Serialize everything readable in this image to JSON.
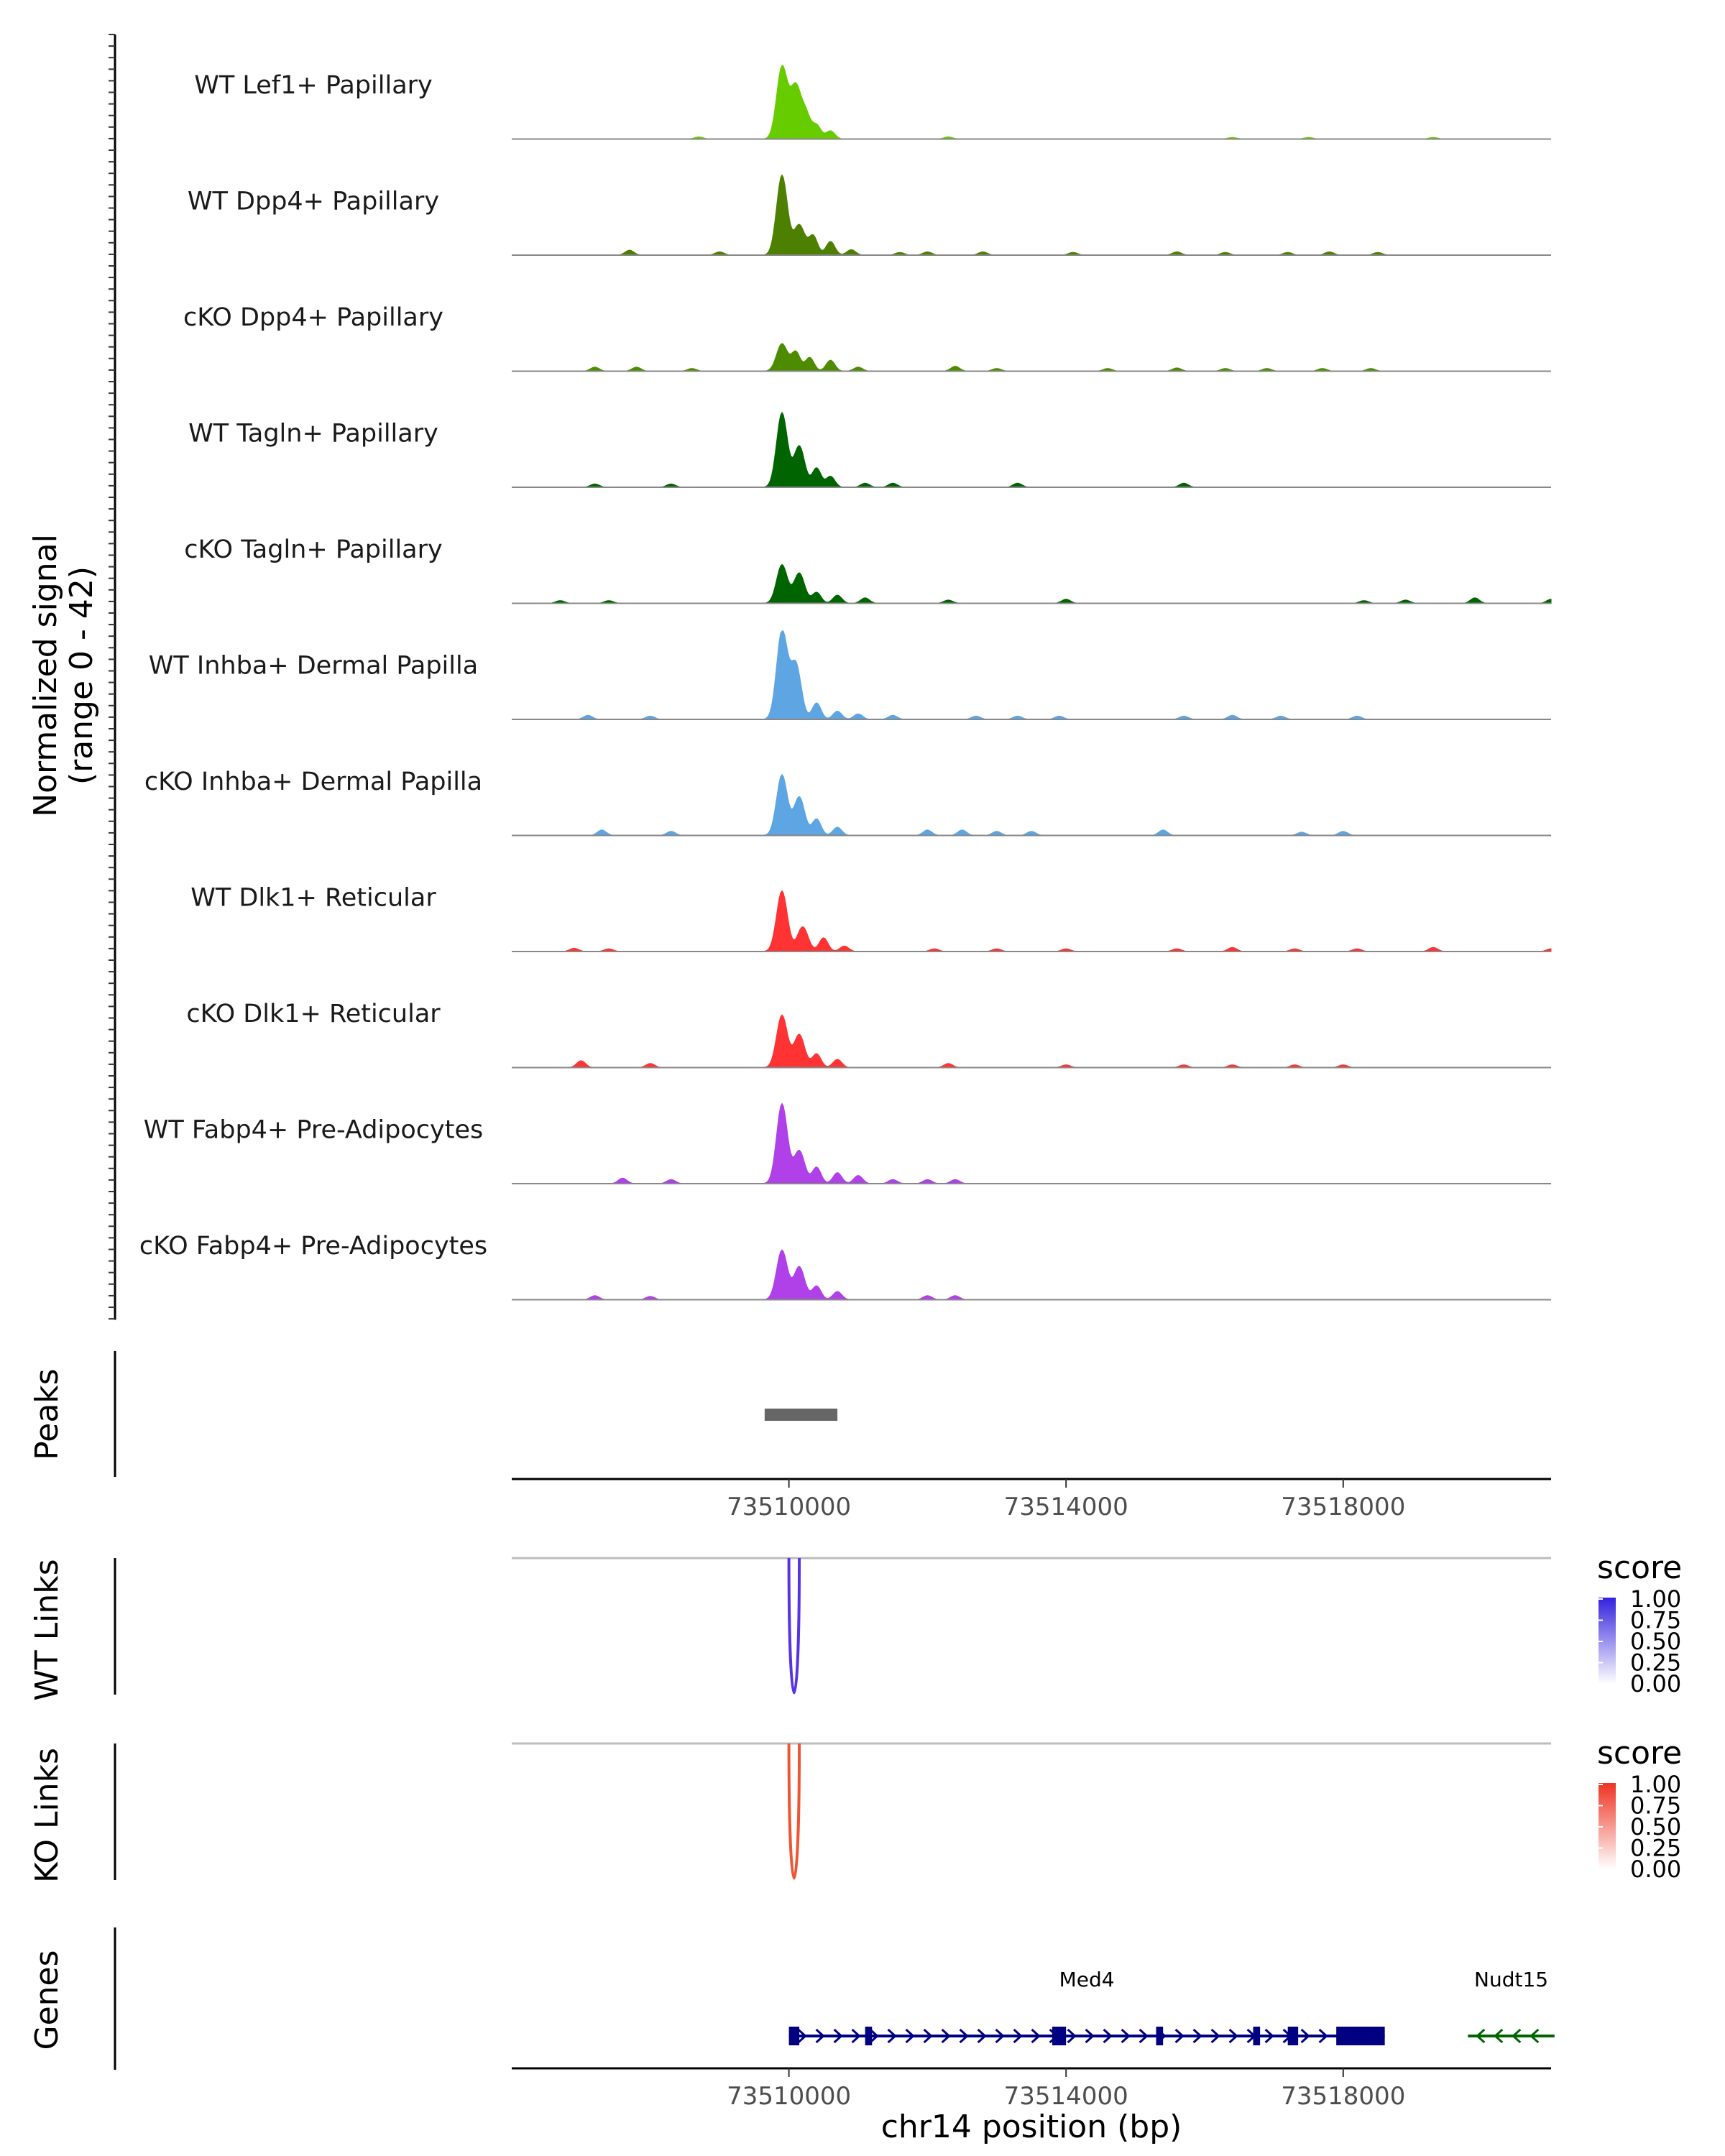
{
  "chart_data": {
    "type": "area",
    "title": "",
    "region": "chr14",
    "xlim": [
      73506000,
      73521000
    ],
    "xlabel": "chr14 position (bp)",
    "x_ticks": [
      {
        "value": 73510000,
        "label": "73510000"
      },
      {
        "value": 73514000,
        "label": "73514000"
      },
      {
        "value": 73518000,
        "label": "73518000"
      }
    ],
    "coverage": {
      "ylabel_line1": "Normalized signal",
      "ylabel_line2": "(range 0 - 42)",
      "ylim": [
        0,
        42
      ],
      "tracks": [
        {
          "name": "WT Lef1+ Papillary",
          "color": "#66CC00",
          "peaks": [
            [
              73508700,
              0.8
            ],
            [
              73509900,
              26
            ],
            [
              73510100,
              19
            ],
            [
              73510250,
              8
            ],
            [
              73510400,
              5
            ],
            [
              73510600,
              3
            ],
            [
              73512300,
              0.8
            ],
            [
              73516400,
              0.6
            ],
            [
              73517500,
              0.6
            ],
            [
              73519300,
              0.6
            ]
          ]
        },
        {
          "name": "WT Dpp4+ Papillary",
          "color": "#4D8000",
          "peaks": [
            [
              73507700,
              1.8
            ],
            [
              73509000,
              1.2
            ],
            [
              73509900,
              29
            ],
            [
              73510150,
              11
            ],
            [
              73510350,
              7
            ],
            [
              73510600,
              5
            ],
            [
              73510900,
              2
            ],
            [
              73511600,
              1
            ],
            [
              73512000,
              1.2
            ],
            [
              73512800,
              1.2
            ],
            [
              73514100,
              1
            ],
            [
              73515600,
              1.2
            ],
            [
              73516300,
              1
            ],
            [
              73517200,
              1
            ],
            [
              73517800,
              1.2
            ],
            [
              73518500,
              1
            ]
          ]
        },
        {
          "name": "cKO Dpp4+ Papillary",
          "color": "#4D8C00",
          "peaks": [
            [
              73507200,
              1.5
            ],
            [
              73507800,
              1.5
            ],
            [
              73508600,
              1
            ],
            [
              73509900,
              10
            ],
            [
              73510100,
              7
            ],
            [
              73510300,
              5
            ],
            [
              73510600,
              4
            ],
            [
              73511000,
              1.5
            ],
            [
              73512400,
              1.8
            ],
            [
              73513000,
              1
            ],
            [
              73514600,
              1
            ],
            [
              73515600,
              1.2
            ],
            [
              73516300,
              1
            ],
            [
              73516900,
              1
            ],
            [
              73517700,
              1
            ],
            [
              73518400,
              1
            ]
          ]
        },
        {
          "name": "WT Tagln+ Papillary",
          "color": "#006400",
          "peaks": [
            [
              73507200,
              1.2
            ],
            [
              73508300,
              1.2
            ],
            [
              73509900,
              27
            ],
            [
              73510150,
              15
            ],
            [
              73510400,
              7
            ],
            [
              73510600,
              4
            ],
            [
              73511100,
              1.5
            ],
            [
              73511500,
              1.5
            ],
            [
              73513300,
              1.5
            ],
            [
              73515700,
              1.5
            ]
          ]
        },
        {
          "name": "cKO Tagln+ Papillary",
          "color": "#006400",
          "peaks": [
            [
              73506700,
              1
            ],
            [
              73507400,
              1
            ],
            [
              73509900,
              14
            ],
            [
              73510150,
              11
            ],
            [
              73510400,
              4
            ],
            [
              73510700,
              3
            ],
            [
              73511100,
              2
            ],
            [
              73512300,
              1.2
            ],
            [
              73514000,
              1.5
            ],
            [
              73518300,
              1
            ],
            [
              73518900,
              1.2
            ],
            [
              73519900,
              2
            ],
            [
              73521000,
              1.5
            ]
          ]
        },
        {
          "name": "WT Inhba+ Dermal Papilla",
          "color": "#5DA5E3",
          "peaks": [
            [
              73507100,
              1.5
            ],
            [
              73508000,
              1.2
            ],
            [
              73509900,
              32
            ],
            [
              73510100,
              20
            ],
            [
              73510400,
              6
            ],
            [
              73510700,
              3
            ],
            [
              73511000,
              2
            ],
            [
              73511500,
              1.5
            ],
            [
              73512700,
              1.2
            ],
            [
              73513300,
              1.2
            ],
            [
              73513900,
              1.2
            ],
            [
              73515700,
              1.2
            ],
            [
              73516400,
              1.5
            ],
            [
              73517100,
              1.2
            ],
            [
              73518200,
              1.2
            ]
          ]
        },
        {
          "name": "cKO Inhba+ Dermal Papilla",
          "color": "#5DA5E3",
          "peaks": [
            [
              73507300,
              2
            ],
            [
              73508300,
              1.5
            ],
            [
              73509900,
              22
            ],
            [
              73510150,
              14
            ],
            [
              73510400,
              6
            ],
            [
              73510700,
              3
            ],
            [
              73512000,
              2
            ],
            [
              73512500,
              2
            ],
            [
              73513000,
              1.5
            ],
            [
              73513500,
              1.5
            ],
            [
              73515400,
              2
            ],
            [
              73517400,
              1.2
            ],
            [
              73518000,
              1.5
            ]
          ]
        },
        {
          "name": "WT Dlk1+ Reticular",
          "color": "#FF3333",
          "peaks": [
            [
              73506900,
              1.2
            ],
            [
              73507400,
              1
            ],
            [
              73509900,
              22
            ],
            [
              73510200,
              9
            ],
            [
              73510500,
              5
            ],
            [
              73510800,
              2
            ],
            [
              73512100,
              1
            ],
            [
              73513000,
              1
            ],
            [
              73514000,
              1
            ],
            [
              73515600,
              1
            ],
            [
              73516400,
              1.5
            ],
            [
              73517300,
              1
            ],
            [
              73518200,
              1
            ],
            [
              73519300,
              1.5
            ],
            [
              73521000,
              1
            ]
          ]
        },
        {
          "name": "cKO Dlk1+ Reticular",
          "color": "#FF3333",
          "peaks": [
            [
              73507000,
              2.5
            ],
            [
              73508000,
              1.5
            ],
            [
              73509900,
              19
            ],
            [
              73510150,
              12
            ],
            [
              73510400,
              5
            ],
            [
              73510700,
              3
            ],
            [
              73512300,
              1.5
            ],
            [
              73514000,
              1
            ],
            [
              73515700,
              1
            ],
            [
              73516400,
              1
            ],
            [
              73517300,
              1
            ],
            [
              73518000,
              1
            ]
          ]
        },
        {
          "name": "WT Fabp4+ Pre-Adipocytes",
          "color": "#B040E8",
          "peaks": [
            [
              73507600,
              2
            ],
            [
              73508300,
              1.5
            ],
            [
              73509900,
              29
            ],
            [
              73510150,
              12
            ],
            [
              73510400,
              6
            ],
            [
              73510700,
              4
            ],
            [
              73511000,
              3
            ],
            [
              73511500,
              1.5
            ],
            [
              73512000,
              1.5
            ],
            [
              73512400,
              1.5
            ]
          ]
        },
        {
          "name": "cKO Fabp4+ Pre-Adipocytes",
          "color": "#B040E8",
          "peaks": [
            [
              73507200,
              1.5
            ],
            [
              73508000,
              1.2
            ],
            [
              73509900,
              18
            ],
            [
              73510150,
              12
            ],
            [
              73510400,
              5
            ],
            [
              73510700,
              3
            ],
            [
              73512000,
              1.5
            ],
            [
              73512400,
              1.5
            ]
          ]
        }
      ]
    },
    "peaks_track": {
      "label": "Peaks",
      "color": "#666666",
      "regions": [
        [
          73509650,
          73510700
        ]
      ]
    },
    "links_tracks": [
      {
        "label": "WT Links",
        "color": "#5533E6",
        "low_color": "#FFFFFF",
        "high_color": "#3322DD",
        "legend_title": "score",
        "legend_labels": [
          "1.00",
          "0.75",
          "0.50",
          "0.25",
          "0.00"
        ],
        "links": [
          [
            73510000,
            73510150,
            1.0
          ]
        ]
      },
      {
        "label": "KO Links",
        "color": "#EE5533",
        "low_color": "#FFFFFF",
        "high_color": "#EE3322",
        "legend_title": "score",
        "legend_labels": [
          "1.00",
          "0.75",
          "0.50",
          "0.25",
          "0.00"
        ],
        "links": [
          [
            73510000,
            73510150,
            1.0
          ]
        ]
      }
    ],
    "genes_track": {
      "label": "Genes",
      "genes": [
        {
          "name": "Med4",
          "strand": "+",
          "color": "#000080",
          "start": 73510000,
          "end": 73518600,
          "exons": [
            [
              73510000,
              73510150
            ],
            [
              73511100,
              73511200
            ],
            [
              73513800,
              73514000
            ],
            [
              73515300,
              73515400
            ],
            [
              73516700,
              73516800
            ],
            [
              73517200,
              73517350
            ],
            [
              73517900,
              73518600
            ]
          ]
        },
        {
          "name": "Nudt15",
          "strand": "-",
          "color": "#006400",
          "start": 73519800,
          "end": 73521050,
          "exons": []
        }
      ]
    }
  }
}
